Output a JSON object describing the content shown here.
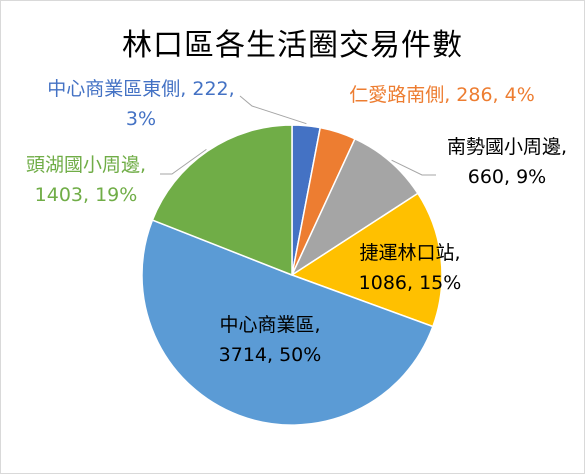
{
  "chart_data": {
    "type": "pie",
    "title": "林口區各生活圈交易件數",
    "slices": [
      {
        "name": "中心商業區東側",
        "value": 222,
        "pct": "3%",
        "label_line1": "中心商業區東側, 222,",
        "label_line2": "3%",
        "color": "#4472C4"
      },
      {
        "name": "仁愛路南側",
        "value": 286,
        "pct": "4%",
        "label_line1": "仁愛路南側, 286, 4%",
        "label_line2": "",
        "color": "#ED7D31"
      },
      {
        "name": "南勢國小周邊",
        "value": 660,
        "pct": "9%",
        "label_line1": "南勢國小周邊,",
        "label_line2": "660, 9%",
        "color": "#A5A5A5"
      },
      {
        "name": "捷運林口站",
        "value": 1086,
        "pct": "15%",
        "label_line1": "捷運林口站,",
        "label_line2": "1086, 15%",
        "color": "#FFC000"
      },
      {
        "name": "中心商業區",
        "value": 3714,
        "pct": "50%",
        "label_line1": "中心商業區,",
        "label_line2": "3714, 50%",
        "color": "#5B9BD5"
      },
      {
        "name": "頭湖國小周邊",
        "value": 1403,
        "pct": "19%",
        "label_line1": "頭湖國小周邊,",
        "label_line2": "1403, 19%",
        "color": "#70AD47"
      }
    ]
  }
}
